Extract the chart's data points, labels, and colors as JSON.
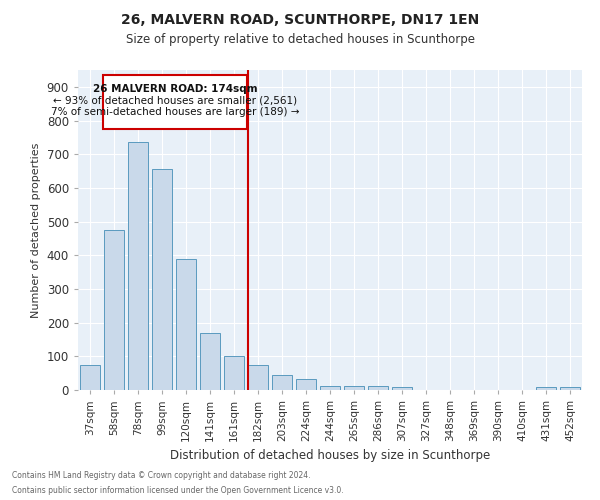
{
  "title1": "26, MALVERN ROAD, SCUNTHORPE, DN17 1EN",
  "title2": "Size of property relative to detached houses in Scunthorpe",
  "xlabel": "Distribution of detached houses by size in Scunthorpe",
  "ylabel": "Number of detached properties",
  "categories": [
    "37sqm",
    "58sqm",
    "78sqm",
    "99sqm",
    "120sqm",
    "141sqm",
    "161sqm",
    "182sqm",
    "203sqm",
    "224sqm",
    "244sqm",
    "265sqm",
    "286sqm",
    "307sqm",
    "327sqm",
    "348sqm",
    "369sqm",
    "390sqm",
    "410sqm",
    "431sqm",
    "452sqm"
  ],
  "values": [
    75,
    475,
    735,
    655,
    390,
    170,
    100,
    75,
    45,
    32,
    13,
    13,
    12,
    10,
    0,
    0,
    0,
    0,
    0,
    10,
    10
  ],
  "bar_color": "#c9d9ea",
  "bar_edge_color": "#5a9abf",
  "vline_color": "#cc0000",
  "annotation_title": "26 MALVERN ROAD: 174sqm",
  "annotation_line1": "← 93% of detached houses are smaller (2,561)",
  "annotation_line2": "7% of semi-detached houses are larger (189) →",
  "annotation_box_color": "#ffffff",
  "annotation_box_edge": "#cc0000",
  "background_color": "#e8f0f8",
  "grid_color": "#ffffff",
  "footer1": "Contains HM Land Registry data © Crown copyright and database right 2024.",
  "footer2": "Contains public sector information licensed under the Open Government Licence v3.0.",
  "ylim": [
    0,
    950
  ],
  "yticks": [
    0,
    100,
    200,
    300,
    400,
    500,
    600,
    700,
    800,
    900
  ]
}
